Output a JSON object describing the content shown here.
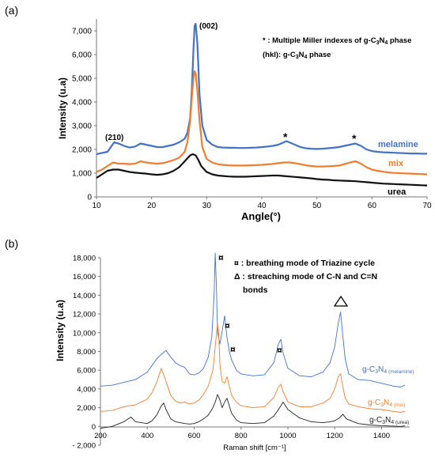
{
  "figure": {
    "panels": [
      {
        "label": "(a)",
        "annotations": {
          "note_line1_prefix": "* : Multiple Miller indexes of g-C",
          "note_line1_suffix": " phase",
          "note_line2_prefix": "(hkl): g-C",
          "note_line2_suffix": " phase",
          "sub3": "3",
          "sub4": "4",
          "peak_002": "(002)",
          "peak_210": "(210)",
          "star": "*"
        }
      },
      {
        "label": "(b)",
        "annotations": {
          "legend_line1": "¤ : breathing mode of Triazine cycle",
          "legend_line2": "Δ : streaching mode of C-N and C=N",
          "legend_line3": "bonds",
          "currency": "¤",
          "gc": "g-C",
          "sub3": "3",
          "sub4": "N",
          "n4": "4",
          "sub_melamine": " (melamine)",
          "sub_mix": " (mix)",
          "sub_urea": " (urea)"
        }
      }
    ]
  },
  "chart_data": [
    {
      "type": "line",
      "panel": "(a)",
      "title": "",
      "xlabel": "Angle(°)",
      "ylabel": "Intensity (u.a)",
      "xlim": [
        10,
        70
      ],
      "ylim": [
        0,
        7500
      ],
      "xticks": [
        "10",
        "20",
        "30",
        "40",
        "50",
        "60",
        "70"
      ],
      "yticks": [
        "0",
        "1,000",
        "2,000",
        "3,000",
        "4,000",
        "5,000",
        "6,000",
        "7,000"
      ],
      "grid": false,
      "series": [
        {
          "name": "melamine",
          "color": "#4472c4",
          "x": [
            10,
            12,
            12.6,
            13.2,
            14,
            15,
            16,
            17,
            18,
            19,
            20,
            21,
            22,
            23,
            24,
            25,
            26,
            26.5,
            27,
            27.3,
            27.6,
            27.8,
            28,
            28.3,
            28.7,
            29.2,
            30,
            31,
            32,
            33,
            34,
            35,
            36,
            37,
            38,
            39,
            40,
            41,
            42,
            43,
            44,
            44.5,
            45,
            46,
            47,
            48,
            49,
            50,
            51,
            52,
            53,
            54,
            55,
            56,
            57,
            58,
            59,
            60,
            61,
            62,
            63,
            64,
            65,
            66,
            67,
            68,
            69,
            70
          ],
          "y": [
            1800,
            1900,
            2100,
            2300,
            2250,
            2150,
            2080,
            2120,
            2250,
            2200,
            2150,
            2100,
            2100,
            2150,
            2200,
            2300,
            2450,
            2700,
            3300,
            4500,
            6200,
            7200,
            7300,
            6500,
            4300,
            3000,
            2400,
            2200,
            2100,
            2080,
            2070,
            2070,
            2060,
            2060,
            2070,
            2080,
            2100,
            2120,
            2150,
            2200,
            2300,
            2350,
            2300,
            2200,
            2100,
            2050,
            2030,
            2020,
            2030,
            2050,
            2070,
            2100,
            2150,
            2200,
            2250,
            2150,
            2000,
            1930,
            1900,
            1880,
            1870,
            1860,
            1850,
            1840,
            1830,
            1830,
            1820,
            1820
          ]
        },
        {
          "name": "mix",
          "color": "#ed7d31",
          "x": [
            10,
            11,
            12,
            13,
            14,
            15,
            16,
            17,
            18,
            19,
            20,
            21,
            22,
            23,
            24,
            25,
            26,
            26.5,
            27,
            27.3,
            27.6,
            27.8,
            28,
            28.3,
            28.7,
            29.2,
            30,
            31,
            32,
            33,
            34,
            35,
            36,
            37,
            38,
            39,
            40,
            41,
            42,
            43,
            44,
            45,
            46,
            47,
            48,
            49,
            50,
            51,
            52,
            53,
            54,
            55,
            56,
            57,
            58,
            59,
            60,
            61,
            62,
            63,
            64,
            65,
            66,
            67,
            68,
            69,
            70
          ],
          "y": [
            1050,
            1150,
            1300,
            1450,
            1400,
            1400,
            1380,
            1400,
            1500,
            1450,
            1420,
            1400,
            1420,
            1480,
            1550,
            1650,
            1900,
            2300,
            3200,
            4200,
            5000,
            5300,
            5200,
            4500,
            3200,
            2100,
            1600,
            1450,
            1380,
            1350,
            1330,
            1320,
            1320,
            1320,
            1330,
            1340,
            1350,
            1370,
            1390,
            1420,
            1450,
            1450,
            1420,
            1380,
            1330,
            1300,
            1280,
            1280,
            1290,
            1300,
            1320,
            1380,
            1450,
            1500,
            1400,
            1250,
            1150,
            1100,
            1060,
            1030,
            1010,
            1000,
            990,
            980,
            970,
            960,
            950
          ]
        },
        {
          "name": "urea",
          "color": "#111111",
          "x": [
            10,
            11,
            12,
            13,
            14,
            15,
            16,
            17,
            18,
            19,
            20,
            21,
            22,
            23,
            24,
            25,
            26,
            27,
            27.5,
            28,
            28.5,
            29,
            30,
            31,
            32,
            33,
            34,
            35,
            36,
            37,
            38,
            39,
            40,
            41,
            42,
            43,
            44,
            45,
            46,
            47,
            48,
            49,
            50,
            51,
            52,
            53,
            54,
            55,
            56,
            57,
            58,
            59,
            60,
            61,
            62,
            63,
            64,
            65,
            66,
            67,
            68,
            69,
            70
          ],
          "y": [
            800,
            950,
            1100,
            1150,
            1150,
            1100,
            1050,
            1020,
            1000,
            980,
            950,
            930,
            950,
            1000,
            1100,
            1250,
            1500,
            1750,
            1800,
            1750,
            1550,
            1300,
            1050,
            950,
            900,
            880,
            860,
            850,
            850,
            850,
            860,
            870,
            880,
            890,
            900,
            900,
            880,
            860,
            840,
            820,
            800,
            780,
            750,
            730,
            720,
            700,
            690,
            680,
            670,
            660,
            640,
            620,
            600,
            580,
            560,
            550,
            540,
            530,
            520,
            510,
            500,
            490,
            480
          ]
        }
      ]
    },
    {
      "type": "line",
      "panel": "(b)",
      "title": "",
      "xlabel": "Raman shift [cm⁻¹]",
      "ylabel": "Intensity (u.a)",
      "xlim": [
        200,
        1520
      ],
      "ylim": [
        -2000,
        18000
      ],
      "xticks": [
        "200",
        "400",
        "600",
        "800",
        "1000",
        "1200",
        "1400"
      ],
      "yticks": [
        "- 2,000",
        "0",
        "2,000",
        "4,000",
        "6,000",
        "8,000",
        "10,000",
        "12,000",
        "14,000",
        "16,000",
        "18,000"
      ],
      "grid": false,
      "series": [
        {
          "name": "g-C3N4 (melamine)",
          "color": "#4472c4",
          "x": [
            200,
            250,
            300,
            350,
            400,
            420,
            440,
            460,
            480,
            500,
            520,
            540,
            560,
            580,
            600,
            620,
            640,
            660,
            675,
            685,
            690,
            695,
            700,
            710,
            720,
            730,
            740,
            750,
            760,
            780,
            800,
            850,
            900,
            940,
            960,
            970,
            980,
            1000,
            1050,
            1100,
            1150,
            1180,
            1200,
            1215,
            1225,
            1235,
            1245,
            1260,
            1300,
            1350,
            1400,
            1450,
            1480,
            1500
          ],
          "y": [
            4300,
            4400,
            4700,
            5000,
            5800,
            6500,
            7200,
            7700,
            8100,
            7400,
            6800,
            6500,
            6300,
            5600,
            5500,
            5700,
            6200,
            7400,
            9500,
            14000,
            18500,
            15000,
            10000,
            8800,
            10200,
            11800,
            9500,
            8000,
            7100,
            6000,
            5600,
            5400,
            5500,
            6800,
            8800,
            9300,
            7800,
            6200,
            5400,
            5300,
            5800,
            6800,
            8500,
            11000,
            12200,
            9500,
            7200,
            5600,
            5000,
            4900,
            4600,
            4300,
            4200,
            4400
          ]
        },
        {
          "name": "g-C3N4 (mix)",
          "color": "#ed7d31",
          "x": [
            200,
            250,
            300,
            350,
            400,
            420,
            440,
            460,
            480,
            500,
            520,
            540,
            560,
            580,
            600,
            620,
            640,
            660,
            680,
            690,
            700,
            705,
            710,
            720,
            730,
            740,
            750,
            760,
            780,
            800,
            850,
            900,
            940,
            960,
            970,
            980,
            1000,
            1050,
            1100,
            1150,
            1180,
            1200,
            1215,
            1225,
            1235,
            1245,
            1260,
            1300,
            1350,
            1400,
            1450,
            1480,
            1500
          ],
          "y": [
            1600,
            1700,
            2100,
            2300,
            2900,
            3600,
            4700,
            6200,
            4800,
            3300,
            2700,
            2500,
            2600,
            2400,
            2500,
            2800,
            3400,
            4300,
            6000,
            8500,
            11000,
            9800,
            6500,
            4800,
            4600,
            5300,
            4300,
            3300,
            2600,
            2200,
            2000,
            2100,
            3100,
            4200,
            4500,
            3700,
            2600,
            2100,
            2100,
            2500,
            3000,
            4000,
            5300,
            5600,
            4200,
            3000,
            2400,
            2100,
            1900,
            1800,
            1600,
            1500,
            1600
          ]
        },
        {
          "name": "g-C3N4 (urea)",
          "color": "#222222",
          "x": [
            200,
            250,
            300,
            330,
            350,
            400,
            420,
            440,
            460,
            470,
            480,
            500,
            520,
            540,
            560,
            580,
            600,
            620,
            640,
            660,
            680,
            690,
            700,
            710,
            720,
            730,
            740,
            750,
            760,
            780,
            800,
            850,
            900,
            940,
            960,
            980,
            1000,
            1050,
            1100,
            1150,
            1180,
            1200,
            1220,
            1235,
            1250,
            1300,
            1350,
            1400,
            1450,
            1480,
            1500
          ],
          "y": [
            -200,
            0,
            500,
            1000,
            500,
            300,
            600,
            1200,
            2200,
            2500,
            1800,
            800,
            500,
            400,
            300,
            250,
            300,
            500,
            800,
            1200,
            2000,
            2600,
            3400,
            2800,
            2000,
            2600,
            3000,
            2200,
            1400,
            700,
            400,
            300,
            400,
            1100,
            1800,
            2600,
            1800,
            900,
            500,
            400,
            500,
            600,
            900,
            1300,
            800,
            300,
            150,
            80,
            30,
            0,
            50
          ]
        }
      ]
    }
  ]
}
